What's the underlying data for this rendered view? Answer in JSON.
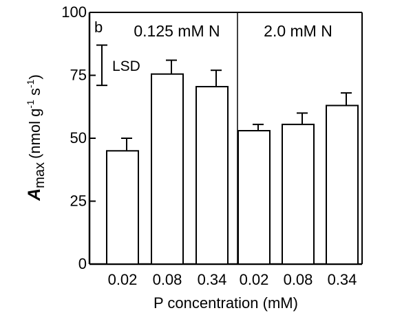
{
  "chart_data": {
    "type": "bar",
    "panel_label": "b",
    "ylabel": {
      "main": "A",
      "subscript": "max",
      "units_prefix": "(nmol g",
      "exp1": "-1",
      "units_mid": " s",
      "exp2": "-1",
      "units_suffix": ")"
    },
    "xlabel": "P concentration (mM)",
    "ylim": [
      0,
      100
    ],
    "yticks": [
      0,
      25,
      50,
      75,
      100
    ],
    "ytick_labels": [
      "0",
      "25",
      "50",
      "75",
      "100"
    ],
    "groups": [
      {
        "name": "0.125 mM N",
        "categories": [
          "0.02",
          "0.08",
          "0.34"
        ],
        "values": [
          45,
          75.5,
          70.5
        ],
        "errors": [
          5,
          5.5,
          6.5
        ]
      },
      {
        "name": "2.0 mM N",
        "categories": [
          "0.02",
          "0.08",
          "0.34"
        ],
        "values": [
          53,
          55.5,
          63
        ],
        "errors": [
          2.5,
          4.5,
          5
        ]
      }
    ],
    "lsd": {
      "label": "LSD",
      "low": 71,
      "high": 87
    },
    "grid": false,
    "bar_color": "#ffffff",
    "line_color": "#000000"
  }
}
